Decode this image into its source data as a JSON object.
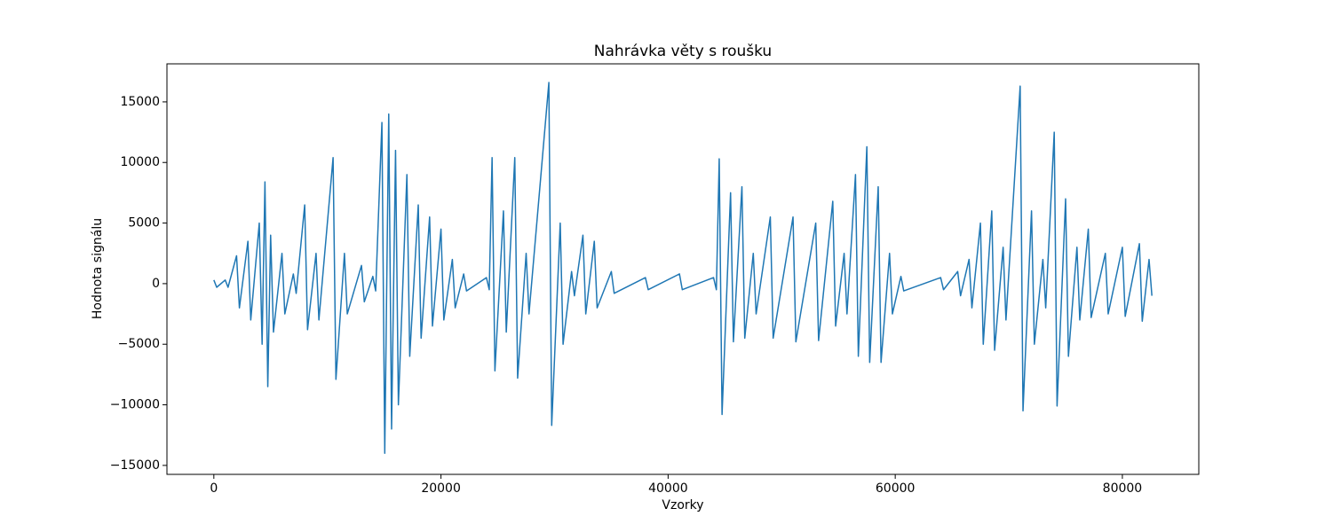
{
  "chart_data": {
    "type": "line",
    "title": "Nahrávka věty s roušku",
    "xlabel": "Vzorky",
    "ylabel": "Hodnota signálu",
    "color": "#1f77b4",
    "x": [
      0,
      250,
      1000,
      1250,
      2000,
      2250,
      3000,
      3250,
      4000,
      4250,
      4500,
      4750,
      5000,
      5250,
      6000,
      6250,
      7000,
      7250,
      8000,
      8250,
      9000,
      9250,
      10500,
      10750,
      11500,
      11750,
      13000,
      13250,
      14000,
      14250,
      14800,
      15050,
      15400,
      15650,
      16000,
      16250,
      17000,
      17250,
      18000,
      18250,
      19000,
      19250,
      20000,
      20250,
      21000,
      21250,
      22000,
      22250,
      24000,
      24250,
      24500,
      24750,
      25500,
      25750,
      26500,
      26750,
      27500,
      27750,
      29500,
      29750,
      30500,
      30750,
      31500,
      31750,
      32500,
      32750,
      33500,
      33750,
      35000,
      35250,
      38000,
      38250,
      41000,
      41250,
      44000,
      44250,
      44500,
      44750,
      45500,
      45750,
      46500,
      46750,
      47500,
      47750,
      49000,
      49250,
      51000,
      51250,
      53000,
      53250,
      54500,
      54750,
      55500,
      55750,
      56500,
      56750,
      57500,
      57750,
      58500,
      58750,
      59500,
      59750,
      60500,
      60750,
      64000,
      64250,
      65500,
      65750,
      66500,
      66750,
      67500,
      67750,
      68500,
      68750,
      69500,
      69750,
      71000,
      71250,
      72000,
      72250,
      73000,
      73250,
      74000,
      74250,
      75000,
      75250,
      76000,
      76250,
      77000,
      77250,
      78500,
      78750,
      80000,
      80250,
      81500,
      81750,
      82350,
      82600
    ],
    "values": [
      300,
      -300,
      300,
      -300,
      2300,
      -2000,
      3500,
      -3000,
      5000,
      -5000,
      8400,
      -8500,
      4000,
      -4000,
      2500,
      -2500,
      800,
      -800,
      6500,
      -3800,
      2500,
      -3000,
      10400,
      -7900,
      2500,
      -2500,
      1500,
      -1500,
      600,
      -600,
      13300,
      -14000,
      14000,
      -12000,
      11000,
      -10000,
      9000,
      -6000,
      6500,
      -4500,
      5500,
      -3500,
      4500,
      -3000,
      2000,
      -2000,
      800,
      -600,
      500,
      -500,
      10400,
      -7200,
      6000,
      -4000,
      10400,
      -7800,
      2500,
      -2500,
      16600,
      -11700,
      5000,
      -5000,
      1000,
      -1000,
      4000,
      -2500,
      3500,
      -2000,
      1000,
      -800,
      500,
      -500,
      800,
      -500,
      500,
      -500,
      10300,
      -10800,
      7500,
      -4800,
      8000,
      -4500,
      2500,
      -2500,
      5500,
      -4500,
      5500,
      -4800,
      5000,
      -4700,
      6800,
      -3500,
      2500,
      -2500,
      9000,
      -6000,
      11300,
      -6500,
      8000,
      -6500,
      2500,
      -2500,
      600,
      -600,
      500,
      -500,
      1000,
      -1000,
      2000,
      -2000,
      5000,
      -5000,
      6000,
      -5500,
      3000,
      -3000,
      16300,
      -10500,
      6000,
      -5000,
      2000,
      -2000,
      12500,
      -10100,
      7000,
      -6000,
      3000,
      -3000,
      4500,
      -2800,
      2500,
      -2500,
      3000,
      -2700,
      3300,
      -3100,
      2000,
      -1000
    ],
    "xlim": [
      -4130,
      86730
    ],
    "ylim": [
      -15740,
      18140
    ],
    "xticks": [
      0,
      20000,
      40000,
      60000,
      80000
    ],
    "yticks": [
      {
        "value": -15000,
        "label": "−15000"
      },
      {
        "value": -10000,
        "label": "−10000"
      },
      {
        "value": -5000,
        "label": "−5000"
      },
      0,
      5000,
      10000,
      15000
    ]
  }
}
